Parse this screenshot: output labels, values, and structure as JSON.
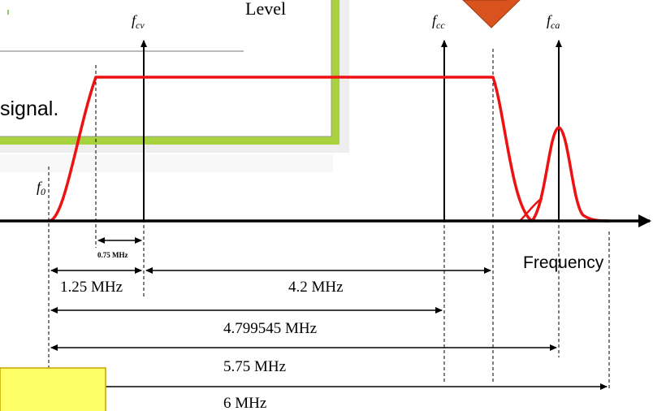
{
  "background_slide": {
    "level_text": "Level",
    "signal_text": "signal.",
    "border_color": "#a8d23c",
    "frame_color": "#9a9a9a"
  },
  "labels": {
    "f0": {
      "base": "f",
      "sub": "0"
    },
    "fcv": {
      "base": "f",
      "sub": "cv"
    },
    "fcc": {
      "base": "f",
      "sub": "cc"
    },
    "fca": {
      "base": "f",
      "sub": "ca"
    },
    "frequency": "Frequency"
  },
  "dimensions": {
    "d075": "0.75 MHz",
    "d125": "1.25 MHz",
    "d42": "4.2 MHz",
    "d4799545": "4.799545 MHz",
    "d575": "5.75 MHz",
    "d6": "6 MHz"
  },
  "callout": {
    "text": "",
    "color": "#ffff66"
  },
  "colors": {
    "response_curve": "#ee1111",
    "pointer_arrow": "#d9531e",
    "axis": "#000000"
  },
  "icons": {
    "pointer": "down-arrow-icon"
  }
}
